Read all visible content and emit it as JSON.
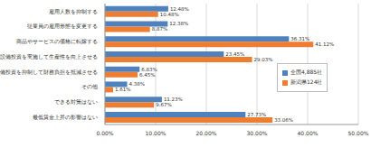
{
  "chart_data": {
    "type": "bar",
    "orientation": "horizontal",
    "categories": [
      "雇用人数を抑制する",
      "従業員の雇用形態を変更する",
      "商品やサービスの価格に転嫁する",
      "設備投資を実施して生産性を向上させる",
      "設備投資を抑制して財務負担を抵減させる",
      "その他",
      "できる対策はない",
      "最低賃金上昇の影響はない"
    ],
    "series": [
      {
        "name": "全国4,885社",
        "color": "#4f81bd",
        "values": [
          12.48,
          12.38,
          36.31,
          23.45,
          6.83,
          4.38,
          11.23,
          27.73
        ],
        "value_labels": [
          "12.48%",
          "12.38%",
          "36.31%",
          "23.45%",
          "6.83%",
          "4.38%",
          "11.23%",
          "27.73%"
        ]
      },
      {
        "name": "新潟県124社",
        "color": "#ed7d31",
        "values": [
          10.48,
          8.87,
          41.12,
          29.03,
          6.45,
          1.61,
          9.67,
          33.06
        ],
        "value_labels": [
          "10.48%",
          "8.87%",
          "41.12%",
          "29.03%",
          "6.45%",
          "1.61%",
          "9.67%",
          "33.06%"
        ]
      }
    ],
    "xlim": [
      0,
      50
    ],
    "xticks": [
      {
        "value": 0,
        "label": "0.00%"
      },
      {
        "value": 10,
        "label": "10.00%"
      },
      {
        "value": 20,
        "label": "20.00%"
      },
      {
        "value": 30,
        "label": "30.00%"
      },
      {
        "value": 40,
        "label": "40.00%"
      },
      {
        "value": 50,
        "label": "50.00%"
      }
    ],
    "grid": true,
    "legend": "right",
    "data_labels": true
  }
}
